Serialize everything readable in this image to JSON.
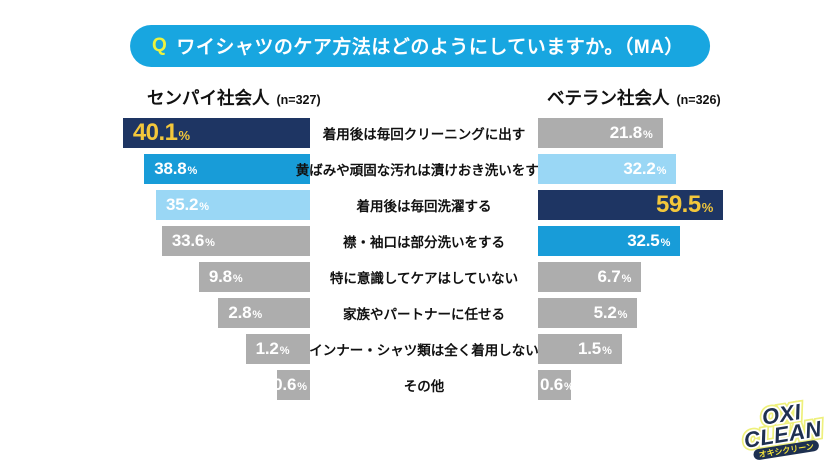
{
  "title": {
    "q_label": "Q",
    "text": "ワイシャツのケア方法はどのようにしていますか。（MA）"
  },
  "headers": {
    "left": {
      "name": "センパイ社会人",
      "sample": "(n=327)"
    },
    "right": {
      "name": "ベテラン社会人",
      "sample": "(n=326)"
    }
  },
  "chart_data": {
    "type": "bar",
    "orientation": "horizontal-mirrored",
    "unit": "%",
    "xlim": [
      0,
      100
    ],
    "categories": [
      "着用後は毎回クリーニングに出す",
      "黄ばみや頑固な汚れは漬けおき洗いをする",
      "着用後は毎回洗濯する",
      "襟・袖口は部分洗いをする",
      "特に意識してケアはしていない",
      "家族やパートナーに任せる",
      "インナー・シャツ類は全く着用しない",
      "その他"
    ],
    "series": [
      {
        "name": "センパイ社会人",
        "n": 327,
        "values": [
          40.1,
          38.8,
          35.2,
          33.6,
          9.8,
          2.8,
          1.2,
          0.6
        ]
      },
      {
        "name": "ベテラン社会人",
        "n": 326,
        "values": [
          21.8,
          32.2,
          59.5,
          32.5,
          6.7,
          5.2,
          1.5,
          0.6
        ]
      }
    ]
  },
  "style": {
    "palette": {
      "navy": "#1e3563",
      "blue": "#189cd8",
      "lightblue": "#9ad7f5",
      "gray": "#adadad",
      "pill_blue": "#18a6e0",
      "q_yellow": "#ecf23f",
      "value_white": "#ffffff",
      "value_yellow": "#f3c73b"
    },
    "left": {
      "colors": [
        "navy",
        "blue",
        "lightblue",
        "gray",
        "gray",
        "gray",
        "gray",
        "gray"
      ],
      "widths_pct": [
        96,
        85,
        79,
        76,
        57,
        47,
        33,
        17
      ],
      "highlight": [
        true,
        false,
        false,
        false,
        false,
        false,
        false,
        false
      ],
      "anchors": [
        "start",
        "start",
        "start",
        "start",
        "start",
        "start",
        "start",
        "end"
      ]
    },
    "right": {
      "colors": [
        "gray",
        "lightblue",
        "navy",
        "blue",
        "gray",
        "gray",
        "gray",
        "gray"
      ],
      "widths_pct": [
        64,
        71,
        95,
        73,
        53,
        51,
        43,
        17
      ],
      "highlight": [
        false,
        false,
        true,
        false,
        false,
        false,
        false,
        false
      ],
      "anchors": [
        "end",
        "end",
        "end",
        "end",
        "end",
        "end",
        "end",
        "start"
      ]
    }
  },
  "logo": {
    "line1": "OXI",
    "line2": "CLEAN",
    "subtitle": "オキシクリーン"
  }
}
